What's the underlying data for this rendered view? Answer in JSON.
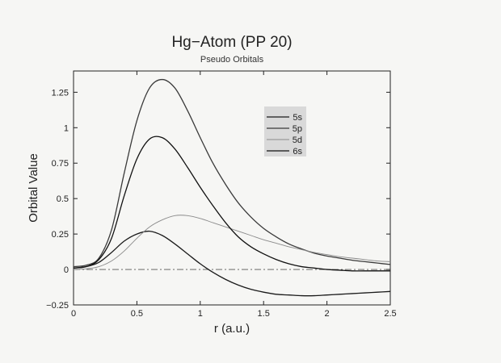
{
  "chart_data": {
    "type": "line",
    "title": "Hg−Atom  (PP 20)",
    "subtitle": "Pseudo Orbitals",
    "xlabel": "r (a.u.)",
    "ylabel": "Orbital Value",
    "xlim": [
      0,
      2.5
    ],
    "ylim": [
      -0.25,
      1.4
    ],
    "xticks": [
      0,
      0.5,
      1,
      1.5,
      2,
      2.5
    ],
    "xtick_labels": [
      "0",
      "0.5",
      "1",
      "1.5",
      "2",
      "2.5"
    ],
    "yticks": [
      -0.25,
      0,
      0.25,
      0.5,
      0.75,
      1,
      1.25
    ],
    "ytick_labels": [
      "−0.25",
      "0",
      "0.25",
      "0.5",
      "0.75",
      "1",
      "1.25"
    ],
    "grid": false,
    "legend_position": "top-right",
    "zero_line": "dash-dot",
    "x": [
      0,
      0.1,
      0.2,
      0.3,
      0.4,
      0.5,
      0.6,
      0.7,
      0.8,
      0.9,
      1.0,
      1.1,
      1.2,
      1.3,
      1.4,
      1.5,
      1.6,
      1.7,
      1.8,
      1.9,
      2.0,
      2.1,
      2.2,
      2.3,
      2.4,
      2.5
    ],
    "series": [
      {
        "name": "5s",
        "color": "#1a1a1a",
        "values": [
          0.01,
          0.02,
          0.05,
          0.12,
          0.2,
          0.25,
          0.27,
          0.24,
          0.18,
          0.11,
          0.04,
          -0.02,
          -0.07,
          -0.11,
          -0.14,
          -0.16,
          -0.175,
          -0.18,
          -0.185,
          -0.185,
          -0.18,
          -0.175,
          -0.17,
          -0.165,
          -0.16,
          -0.155
        ]
      },
      {
        "name": "5p",
        "color": "#3a3a3a",
        "values": [
          0.02,
          0.03,
          0.08,
          0.28,
          0.68,
          1.05,
          1.28,
          1.34,
          1.28,
          1.12,
          0.93,
          0.75,
          0.6,
          0.47,
          0.37,
          0.29,
          0.23,
          0.18,
          0.145,
          0.115,
          0.095,
          0.08,
          0.065,
          0.055,
          0.045,
          0.035
        ]
      },
      {
        "name": "5d",
        "color": "#8a8a8a",
        "values": [
          0.0,
          0.005,
          0.02,
          0.06,
          0.13,
          0.22,
          0.3,
          0.35,
          0.38,
          0.38,
          0.36,
          0.33,
          0.3,
          0.27,
          0.24,
          0.21,
          0.185,
          0.16,
          0.14,
          0.12,
          0.105,
          0.09,
          0.08,
          0.07,
          0.06,
          0.055
        ]
      },
      {
        "name": "6s",
        "color": "#111111",
        "values": [
          0.01,
          0.02,
          0.07,
          0.22,
          0.52,
          0.78,
          0.92,
          0.93,
          0.85,
          0.72,
          0.58,
          0.45,
          0.33,
          0.23,
          0.16,
          0.11,
          0.07,
          0.04,
          0.02,
          0.01,
          0.0,
          -0.005,
          -0.01,
          -0.01,
          -0.01,
          -0.01
        ]
      }
    ]
  }
}
